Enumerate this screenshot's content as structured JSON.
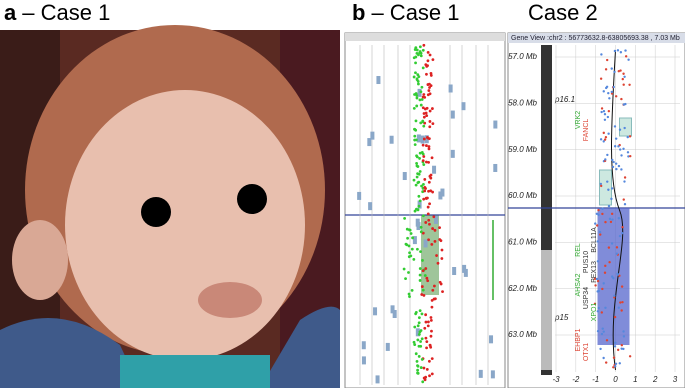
{
  "panels": [
    {
      "label": "a",
      "title": "– Case 1"
    },
    {
      "label": "b",
      "title": "– Case 1"
    },
    {
      "title": "Case 2"
    }
  ],
  "gene_view": {
    "header": "Gene View :chr2 : 56773632.8-63805693.38 , 7.03 Mb",
    "ylim": [
      56.6,
      63.8
    ],
    "yticks": [
      {
        "value": 57,
        "label": "57.0 Mb"
      },
      {
        "value": 58,
        "label": "58.0 Mb"
      },
      {
        "value": 59,
        "label": "59.0 Mb"
      },
      {
        "value": 60,
        "label": "60.0 Mb"
      },
      {
        "value": 61,
        "label": "61.0 Mb"
      },
      {
        "value": 62,
        "label": "62.0 Mb"
      },
      {
        "value": 63,
        "label": "63.0 Mb"
      }
    ],
    "xlim": [
      -3.5,
      3.3
    ],
    "xticks": [
      -3,
      -2,
      -1,
      0,
      1,
      2,
      3
    ],
    "bands": [
      "p16.1",
      "p15"
    ],
    "genes": [
      "VRK2",
      "FANCL",
      "BCL11A",
      "REL",
      "PUS10",
      "PEX13",
      "AHSA2",
      "USP34",
      "XPO1",
      "EHBP1",
      "OTX1"
    ]
  }
}
